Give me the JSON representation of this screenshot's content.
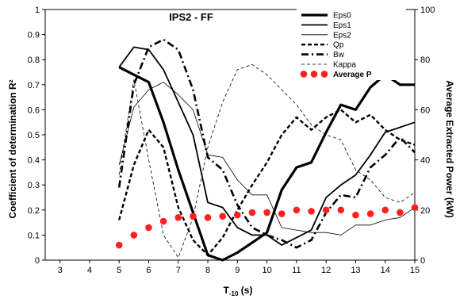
{
  "chart_data": {
    "type": "line",
    "title": "IPS2 - FF",
    "xlabel": "T-10 (s)",
    "xlabel_main": "T",
    "xlabel_sub": "-10",
    "xlabel_suffix": " (s)",
    "ylabel": "Coefficient of determination R²",
    "y2label": "Average Extracted Power (kW)",
    "xlim": [
      2.5,
      15
    ],
    "ylim": [
      0,
      1
    ],
    "y2lim": [
      0,
      100
    ],
    "xticks": [
      "3",
      "4",
      "5",
      "6",
      "7",
      "8",
      "9",
      "10",
      "11",
      "12",
      "13",
      "14",
      "15"
    ],
    "yticks": [
      "0",
      "0.1",
      "0.2",
      "0.3",
      "0.4",
      "0.5",
      "0.6",
      "0.7",
      "0.8",
      "0.9",
      "1"
    ],
    "y2ticks": [
      "0",
      "20",
      "40",
      "60",
      "80",
      "100"
    ],
    "grid": false,
    "legend_position": "top-right",
    "series": [
      {
        "name": "Eps0",
        "style": "thick-solid",
        "axis": "left",
        "x": [
          5,
          5.5,
          6,
          6.5,
          7,
          7.5,
          8,
          8.5,
          9,
          9.5,
          10,
          10.5,
          11,
          11.5,
          12,
          12.5,
          13,
          13.5,
          14,
          14.5,
          15
        ],
        "y": [
          0.77,
          0.74,
          0.71,
          0.55,
          0.36,
          0.19,
          0.02,
          0.0,
          0.03,
          0.07,
          0.11,
          0.28,
          0.37,
          0.39,
          0.51,
          0.62,
          0.6,
          0.69,
          0.74,
          0.7,
          0.7
        ]
      },
      {
        "name": "Eps1",
        "style": "solid",
        "axis": "left",
        "x": [
          5,
          5.5,
          6,
          6.5,
          7,
          7.5,
          8,
          8.5,
          9,
          9.5,
          10,
          10.5,
          11,
          11.5,
          12,
          12.5,
          13,
          13.5,
          14,
          14.5,
          15
        ],
        "y": [
          0.77,
          0.85,
          0.84,
          0.76,
          0.63,
          0.5,
          0.23,
          0.21,
          0.13,
          0.1,
          0.1,
          0.06,
          0.09,
          0.12,
          0.25,
          0.3,
          0.34,
          0.42,
          0.51,
          0.53,
          0.55
        ]
      },
      {
        "name": "Eps2",
        "style": "thin-solid",
        "axis": "left",
        "x": [
          5,
          5.5,
          6,
          6.5,
          7,
          7.5,
          8,
          8.5,
          9,
          9.5,
          10,
          10.5,
          11,
          11.5,
          12,
          12.5,
          13,
          13.5,
          14,
          14.5,
          15
        ],
        "y": [
          0.38,
          0.61,
          0.68,
          0.71,
          0.66,
          0.6,
          0.42,
          0.41,
          0.32,
          0.26,
          0.26,
          0.13,
          0.12,
          0.11,
          0.11,
          0.1,
          0.14,
          0.14,
          0.16,
          0.17,
          0.21
        ]
      },
      {
        "name": "Qp",
        "style": "dashed",
        "axis": "left",
        "x": [
          5,
          5.5,
          6,
          6.5,
          7,
          7.5,
          8,
          8.5,
          9,
          9.5,
          10,
          10.5,
          11,
          11.5,
          12,
          12.5,
          13,
          13.5,
          14,
          14.5,
          15
        ],
        "y": [
          0.16,
          0.38,
          0.52,
          0.45,
          0.21,
          0.08,
          0.02,
          0.09,
          0.2,
          0.3,
          0.39,
          0.5,
          0.57,
          0.52,
          0.57,
          0.6,
          0.55,
          0.58,
          0.52,
          0.48,
          0.46
        ]
      },
      {
        "name": "Bw",
        "style": "dash-dot",
        "axis": "left",
        "x": [
          5,
          5.5,
          6,
          6.5,
          7,
          7.5,
          8,
          8.5,
          9,
          9.5,
          10,
          10.5,
          11,
          11.5,
          12,
          12.5,
          13,
          13.5,
          14,
          14.5,
          15
        ],
        "y": [
          0.29,
          0.7,
          0.85,
          0.88,
          0.84,
          0.68,
          0.41,
          0.36,
          0.22,
          0.13,
          0.1,
          0.08,
          0.05,
          0.08,
          0.19,
          0.26,
          0.25,
          0.37,
          0.42,
          0.49,
          0.43
        ]
      },
      {
        "name": "Kappa",
        "style": "thin-dashed",
        "axis": "left",
        "x": [
          5,
          5.5,
          6,
          6.5,
          7,
          7.5,
          8,
          8.5,
          9,
          9.5,
          10,
          10.5,
          11,
          11.5,
          12,
          12.5,
          13,
          13.5,
          14,
          14.5,
          15
        ],
        "y": [
          0.34,
          0.72,
          0.4,
          0.1,
          0.01,
          0.17,
          0.45,
          0.63,
          0.76,
          0.78,
          0.74,
          0.68,
          0.62,
          0.54,
          0.5,
          0.48,
          0.36,
          0.32,
          0.25,
          0.23,
          0.27
        ]
      },
      {
        "name": "Average P",
        "style": "markers",
        "axis": "right",
        "color": "#ff2020",
        "x": [
          5,
          5.5,
          6,
          6.5,
          7,
          7.5,
          8,
          8.5,
          9,
          9.5,
          10,
          10.5,
          11,
          11.5,
          12,
          12.5,
          13,
          13.5,
          14,
          14.5,
          15
        ],
        "y": [
          6,
          10,
          13,
          15.5,
          17,
          17.5,
          17,
          17.5,
          18,
          19,
          19,
          18.5,
          20,
          19.5,
          20,
          20,
          18,
          18.5,
          20,
          19,
          21
        ]
      }
    ]
  }
}
